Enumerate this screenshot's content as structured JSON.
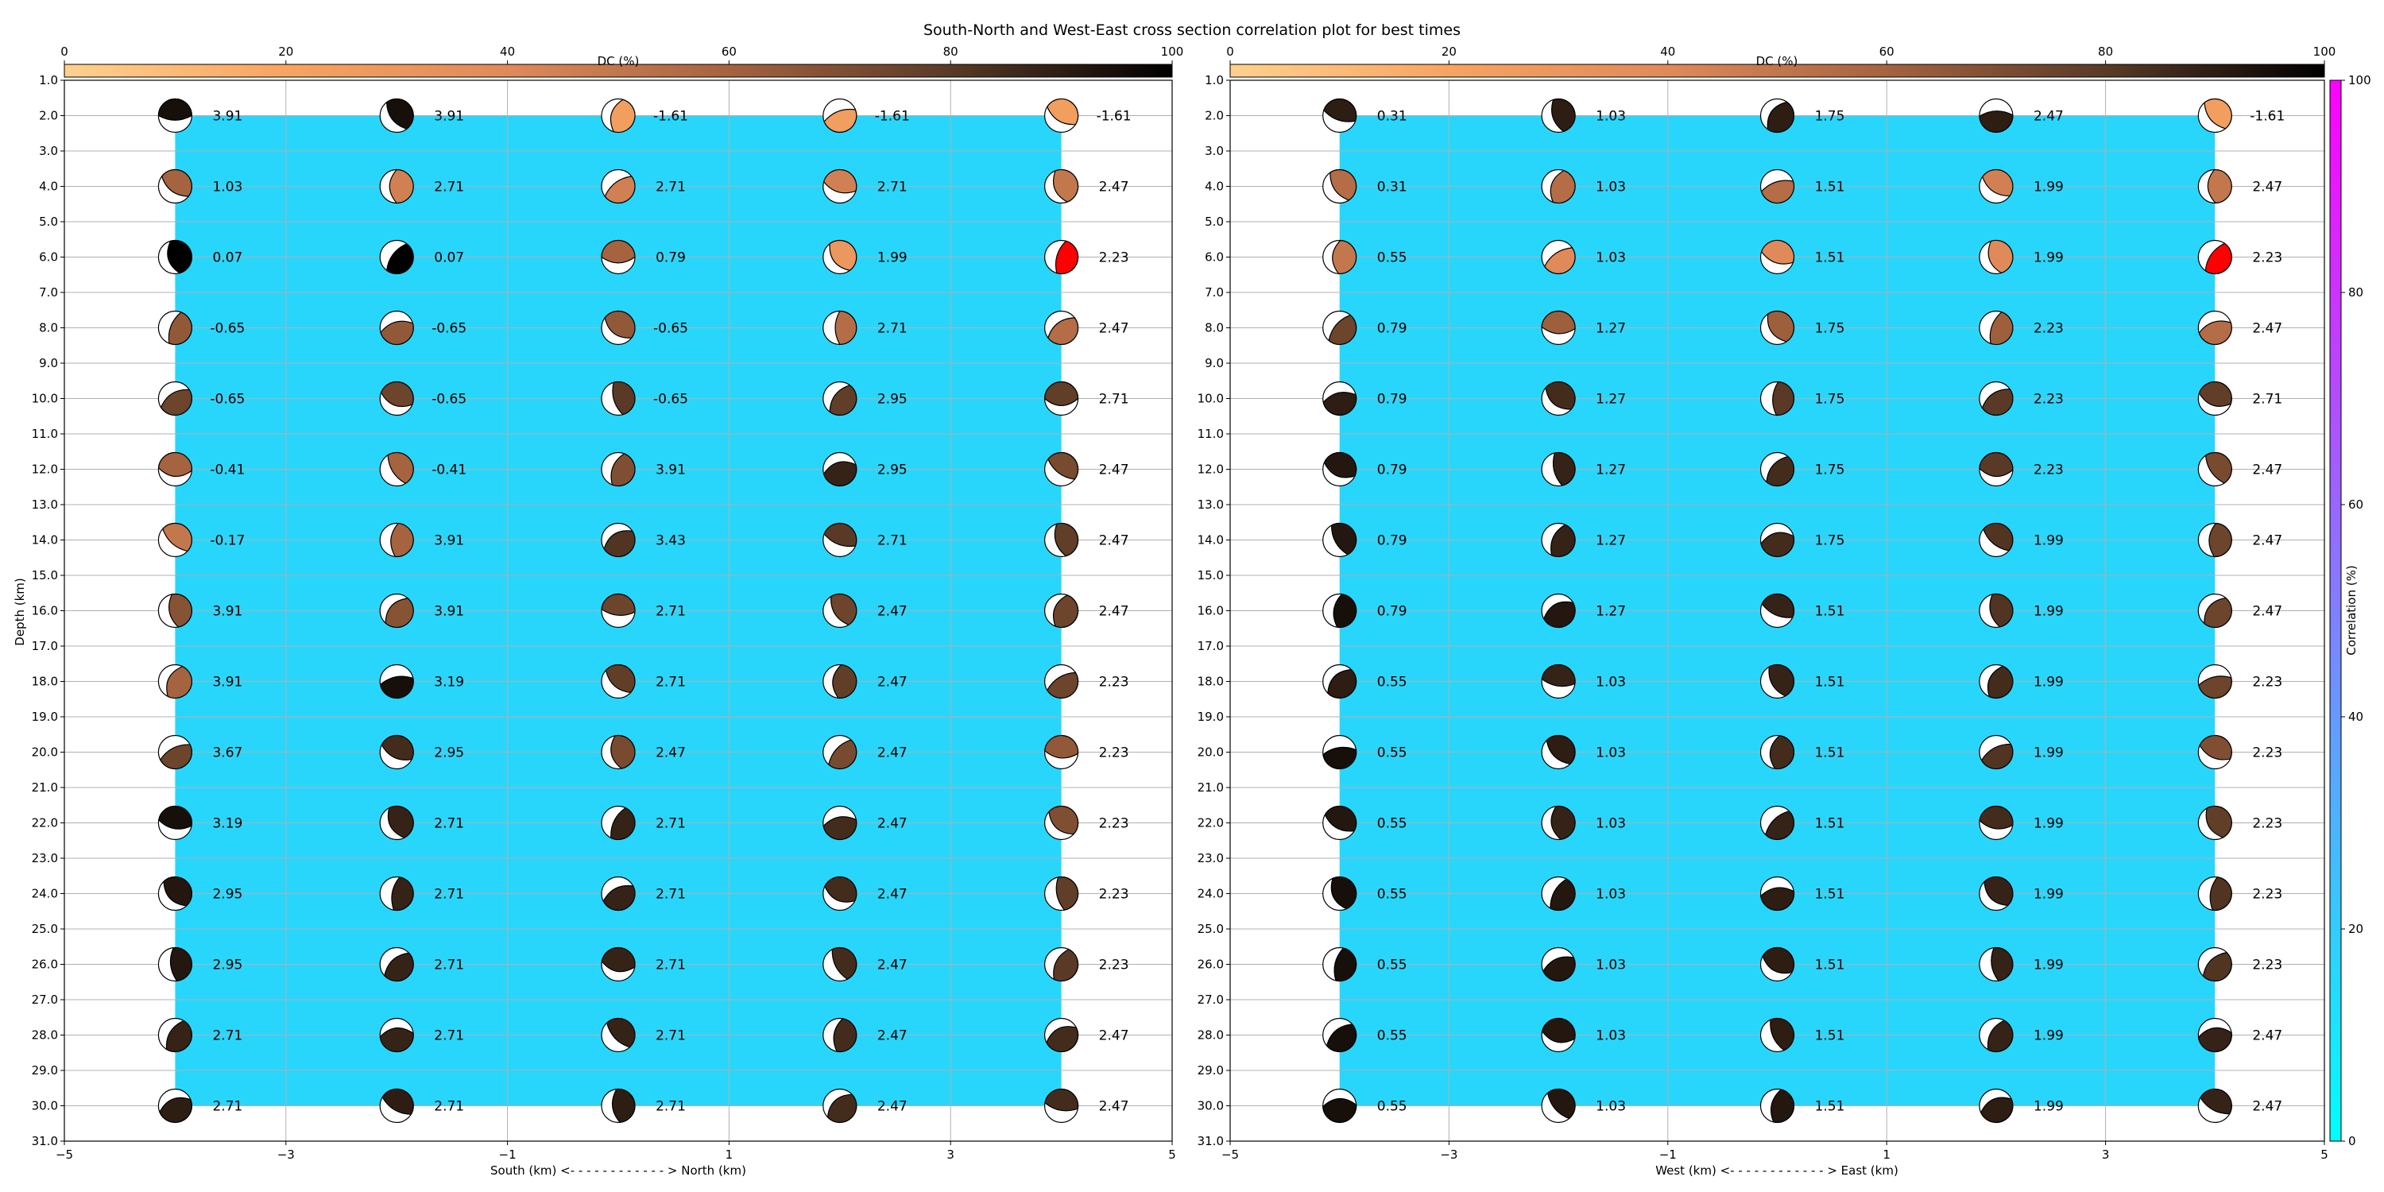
{
  "title": "South-North and West-East cross section correlation plot for best times",
  "colors": {
    "background_fill": "#29d6fb",
    "grid": "#b0b0b0",
    "best": "#ff0000",
    "dc_stops": [
      "#ffd18e",
      "#f7a460",
      "#e08a5a",
      "#a5633f",
      "#5a3a26",
      "#000000"
    ],
    "corr_stops": [
      "#00ffff",
      "#ff00ff"
    ]
  },
  "dc_colorbar": {
    "label": "DC (%)",
    "min": 0,
    "max": 100,
    "ticks": [
      "0",
      "20",
      "40",
      "60",
      "80",
      "100"
    ]
  },
  "corr_colorbar": {
    "label": "Correlation (%)",
    "min": 0,
    "max": 100,
    "ticks": [
      "0",
      "20",
      "40",
      "60",
      "80",
      "100"
    ]
  },
  "chart_data": [
    {
      "type": "heatmap",
      "panel": "south-north",
      "xlabel": "South (km) <- - - - - - - - - - - - > North (km)",
      "ylabel": "Depth (km)",
      "xlim": [
        -5,
        5
      ],
      "ylim": [
        31.0,
        1.0
      ],
      "x_ticks": [
        "−5",
        "−3",
        "−1",
        "1",
        "3",
        "5"
      ],
      "y_ticks": [
        "1.0",
        "2.0",
        "3.0",
        "4.0",
        "5.0",
        "6.0",
        "7.0",
        "8.0",
        "9.0",
        "10.0",
        "11.0",
        "12.0",
        "13.0",
        "14.0",
        "15.0",
        "16.0",
        "17.0",
        "18.0",
        "19.0",
        "20.0",
        "21.0",
        "22.0",
        "23.0",
        "24.0",
        "25.0",
        "26.0",
        "27.0",
        "28.0",
        "29.0",
        "30.0",
        "31.0"
      ],
      "x": [
        -4,
        -2,
        0,
        2,
        4
      ],
      "depths": [
        2,
        4,
        6,
        8,
        10,
        12,
        14,
        16,
        18,
        20,
        22,
        24,
        26,
        28,
        30
      ],
      "values": [
        [
          "3.91",
          "3.91",
          "-1.61",
          "-1.61",
          "-1.61"
        ],
        [
          "1.03",
          "2.71",
          "2.71",
          "2.71",
          "2.47"
        ],
        [
          "0.07",
          "0.07",
          "0.79",
          "1.99",
          "2.23"
        ],
        [
          "-0.65",
          "-0.65",
          "-0.65",
          "2.71",
          "2.47"
        ],
        [
          "-0.65",
          "-0.65",
          "-0.65",
          "2.95",
          "2.71"
        ],
        [
          "-0.41",
          "-0.41",
          "3.91",
          "2.95",
          "2.47"
        ],
        [
          "-0.17",
          "3.91",
          "3.43",
          "2.71",
          "2.47"
        ],
        [
          "3.91",
          "3.91",
          "2.71",
          "2.47",
          "2.47"
        ],
        [
          "3.91",
          "3.19",
          "2.71",
          "2.47",
          "2.23"
        ],
        [
          "3.67",
          "2.95",
          "2.47",
          "2.47",
          "2.23"
        ],
        [
          "3.19",
          "2.71",
          "2.71",
          "2.47",
          "2.23"
        ],
        [
          "2.95",
          "2.71",
          "2.71",
          "2.47",
          "2.23"
        ],
        [
          "2.95",
          "2.71",
          "2.71",
          "2.47",
          "2.23"
        ],
        [
          "2.71",
          "2.71",
          "2.71",
          "2.47",
          "2.47"
        ],
        [
          "2.71",
          "2.71",
          "2.71",
          "2.47",
          "2.47"
        ]
      ],
      "dc": [
        [
          95,
          95,
          25,
          25,
          25
        ],
        [
          60,
          45,
          45,
          45,
          50
        ],
        [
          100,
          100,
          60,
          30,
          0
        ],
        [
          65,
          65,
          65,
          55,
          55
        ],
        [
          75,
          75,
          80,
          78,
          78
        ],
        [
          60,
          60,
          70,
          88,
          72
        ],
        [
          50,
          60,
          82,
          80,
          78
        ],
        [
          68,
          68,
          75,
          75,
          75
        ],
        [
          60,
          95,
          78,
          78,
          75
        ],
        [
          75,
          85,
          72,
          72,
          65
        ],
        [
          95,
          88,
          88,
          85,
          70
        ],
        [
          92,
          88,
          88,
          85,
          78
        ],
        [
          92,
          88,
          88,
          85,
          80
        ],
        [
          88,
          88,
          88,
          85,
          85
        ],
        [
          90,
          90,
          90,
          85,
          85
        ]
      ],
      "best": [
        2,
        4
      ]
    },
    {
      "type": "heatmap",
      "panel": "west-east",
      "xlabel": "West (km) <- - - - - - - - - - - - > East (km)",
      "xlim": [
        -5,
        5
      ],
      "ylim": [
        31.0,
        1.0
      ],
      "x_ticks": [
        "−5",
        "−3",
        "−1",
        "1",
        "3",
        "5"
      ],
      "y_ticks": [
        "1.0",
        "2.0",
        "3.0",
        "4.0",
        "5.0",
        "6.0",
        "7.0",
        "8.0",
        "9.0",
        "10.0",
        "11.0",
        "12.0",
        "13.0",
        "14.0",
        "15.0",
        "16.0",
        "17.0",
        "18.0",
        "19.0",
        "20.0",
        "21.0",
        "22.0",
        "23.0",
        "24.0",
        "25.0",
        "26.0",
        "27.0",
        "28.0",
        "29.0",
        "30.0",
        "31.0"
      ],
      "x": [
        -4,
        -2,
        0,
        2,
        4
      ],
      "depths": [
        2,
        4,
        6,
        8,
        10,
        12,
        14,
        16,
        18,
        20,
        22,
        24,
        26,
        28,
        30
      ],
      "values": [
        [
          "0.31",
          "1.03",
          "1.75",
          "2.47",
          "-1.61"
        ],
        [
          "0.31",
          "1.03",
          "1.51",
          "1.99",
          "2.47"
        ],
        [
          "0.55",
          "1.03",
          "1.51",
          "1.99",
          "2.23"
        ],
        [
          "0.79",
          "1.27",
          "1.75",
          "2.23",
          "2.47"
        ],
        [
          "0.79",
          "1.27",
          "1.75",
          "2.23",
          "2.71"
        ],
        [
          "0.79",
          "1.27",
          "1.75",
          "2.23",
          "2.47"
        ],
        [
          "0.79",
          "1.27",
          "1.75",
          "1.99",
          "2.47"
        ],
        [
          "0.79",
          "1.27",
          "1.51",
          "1.99",
          "2.47"
        ],
        [
          "0.55",
          "1.03",
          "1.51",
          "1.99",
          "2.23"
        ],
        [
          "0.55",
          "1.03",
          "1.51",
          "1.99",
          "2.23"
        ],
        [
          "0.55",
          "1.03",
          "1.51",
          "1.99",
          "2.23"
        ],
        [
          "0.55",
          "1.03",
          "1.51",
          "1.99",
          "2.23"
        ],
        [
          "0.55",
          "1.03",
          "1.51",
          "1.99",
          "2.23"
        ],
        [
          "0.55",
          "1.03",
          "1.51",
          "1.99",
          "2.47"
        ],
        [
          "0.55",
          "1.03",
          "1.51",
          "1.99",
          "2.47"
        ]
      ],
      "dc": [
        [
          90,
          90,
          90,
          90,
          25
        ],
        [
          55,
          55,
          55,
          45,
          50
        ],
        [
          50,
          40,
          40,
          40,
          0
        ],
        [
          75,
          62,
          62,
          62,
          55
        ],
        [
          90,
          85,
          80,
          80,
          78
        ],
        [
          92,
          88,
          85,
          80,
          72
        ],
        [
          92,
          88,
          85,
          82,
          75
        ],
        [
          95,
          92,
          88,
          82,
          75
        ],
        [
          90,
          88,
          88,
          85,
          75
        ],
        [
          95,
          90,
          85,
          82,
          70
        ],
        [
          92,
          88,
          88,
          85,
          78
        ],
        [
          95,
          92,
          90,
          88,
          82
        ],
        [
          95,
          92,
          90,
          88,
          82
        ],
        [
          95,
          92,
          90,
          88,
          88
        ],
        [
          95,
          92,
          92,
          90,
          88
        ]
      ],
      "best": [
        2,
        4
      ]
    }
  ]
}
